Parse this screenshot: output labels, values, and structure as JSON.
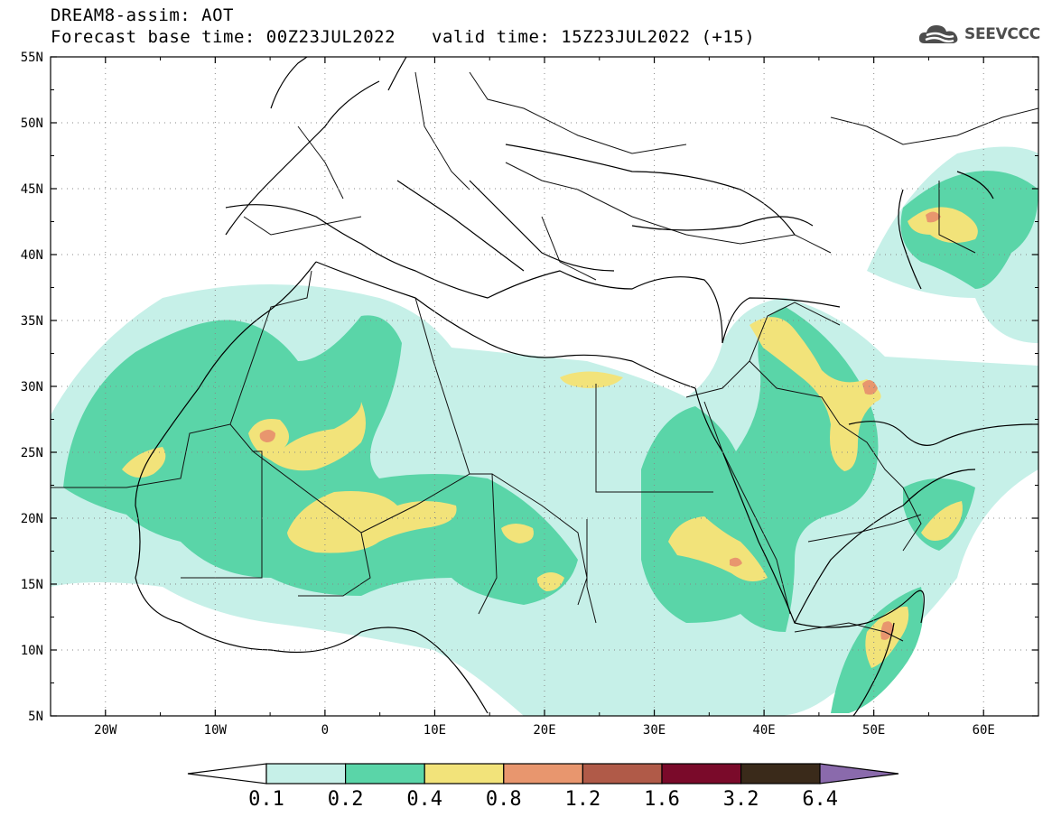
{
  "header": {
    "title_line1": "DREAM8-assim: AOT",
    "title_line2": "Forecast base time: 00Z23JUL2022",
    "valid_time": "valid time: 15Z23JUL2022 (+15)",
    "logo_text": "SEEVCCC",
    "logo_icon": "cloud-icon"
  },
  "map": {
    "projection": "lat-lon",
    "lon_range": [
      -25,
      65
    ],
    "lat_range": [
      5,
      55
    ],
    "lat_labels": [
      "55N",
      "50N",
      "45N",
      "40N",
      "35N",
      "30N",
      "25N",
      "20N",
      "15N",
      "10N",
      "5N"
    ],
    "lon_labels": [
      "20W",
      "10W",
      "0",
      "10E",
      "20E",
      "30E",
      "40E",
      "50E",
      "60E"
    ],
    "gridlines": "dotted",
    "dust_regions": [
      {
        "level": "0.1-0.2",
        "area": "West Africa / Sahara background",
        "lon": [
          -25,
          45
        ],
        "lat": [
          8,
          37
        ]
      },
      {
        "level": "0.2-0.4",
        "area": "Western Sahara-Mauritania-Mali plume",
        "lon": [
          -20,
          25
        ],
        "lat": [
          13,
          33
        ]
      },
      {
        "level": "0.4-0.8",
        "area": "Mali-Algeria core",
        "lon": [
          -3,
          12
        ],
        "lat": [
          18,
          23
        ]
      },
      {
        "level": "0.8-1.2",
        "area": "Algeria hotspot",
        "lon": [
          -5,
          -4
        ],
        "lat": [
          25,
          26
        ]
      },
      {
        "level": "0.4-0.8",
        "area": "Iraq-Persian Gulf band",
        "lon": [
          40,
          52
        ],
        "lat": [
          23,
          35
        ]
      },
      {
        "level": "0.8-1.2",
        "area": "Kuwait / southern Iraq",
        "lon": [
          49,
          50
        ],
        "lat": [
          29,
          31
        ]
      },
      {
        "level": "0.4-0.8",
        "area": "Sudan-Eritrea",
        "lon": [
          33,
          41
        ],
        "lat": [
          14,
          20
        ]
      },
      {
        "level": "0.8-1.2",
        "area": "Somalia coast",
        "lon": [
          50,
          52
        ],
        "lat": [
          10,
          12
        ]
      },
      {
        "level": "0.4-0.8",
        "area": "Aral / Caspian region",
        "lon": [
          53,
          59
        ],
        "lat": [
          40,
          44
        ]
      }
    ]
  },
  "colorbar": {
    "labels": [
      "0.1",
      "0.2",
      "0.4",
      "0.8",
      "1.2",
      "1.6",
      "3.2",
      "6.4"
    ],
    "colors": [
      "#c6f0e8",
      "#5ad5a8",
      "#f2e37a",
      "#e8966e",
      "#b05a48",
      "#7a0a2a",
      "#3a2a1a"
    ],
    "over_color": "#8a6aac",
    "under_color": "#ffffff"
  }
}
